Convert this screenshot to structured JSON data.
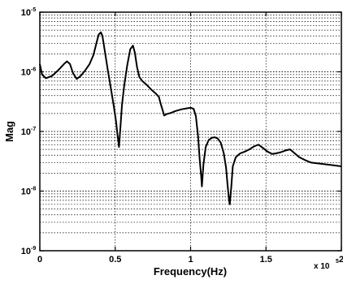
{
  "chart_data": {
    "type": "line",
    "xlabel": "Frequency(Hz)",
    "ylabel": "Mag",
    "x_scale_label": "x 10",
    "x_scale_exp": "5",
    "xlim": [
      0,
      2
    ],
    "ylim": [
      1e-09,
      1e-05
    ],
    "yscale": "log",
    "grid": "dotted",
    "x_ticks": [
      {
        "value": 0,
        "label": "0"
      },
      {
        "value": 0.5,
        "label": "0.5"
      },
      {
        "value": 1,
        "label": "1"
      },
      {
        "value": 1.5,
        "label": "1.5"
      },
      {
        "value": 2,
        "label": "2"
      }
    ],
    "y_ticks": [
      {
        "value": 1e-09,
        "base": "10",
        "exp": "-9"
      },
      {
        "value": 1e-08,
        "base": "10",
        "exp": "-8"
      },
      {
        "value": 1e-07,
        "base": "10",
        "exp": "-7"
      },
      {
        "value": 1e-06,
        "base": "10",
        "exp": "-6"
      },
      {
        "value": 1e-05,
        "base": "10",
        "exp": "-5"
      }
    ],
    "series": [
      {
        "color": "#000000",
        "points": [
          [
            0.0,
            1.35e-06
          ],
          [
            0.015,
            9e-07
          ],
          [
            0.04,
            7.8e-07
          ],
          [
            0.08,
            8.5e-07
          ],
          [
            0.12,
            1.05e-06
          ],
          [
            0.16,
            1.35e-06
          ],
          [
            0.18,
            1.5e-06
          ],
          [
            0.2,
            1.35e-06
          ],
          [
            0.22,
            9.5e-07
          ],
          [
            0.245,
            7.6e-07
          ],
          [
            0.27,
            8.5e-07
          ],
          [
            0.3,
            1.05e-06
          ],
          [
            0.33,
            1.35e-06
          ],
          [
            0.355,
            1.9e-06
          ],
          [
            0.375,
            3e-06
          ],
          [
            0.39,
            4.2e-06
          ],
          [
            0.405,
            4.6e-06
          ],
          [
            0.415,
            4e-06
          ],
          [
            0.43,
            2.3e-06
          ],
          [
            0.45,
            1.1e-06
          ],
          [
            0.47,
            5.5e-07
          ],
          [
            0.49,
            2.7e-07
          ],
          [
            0.505,
            1.5e-07
          ],
          [
            0.515,
            9e-08
          ],
          [
            0.525,
            5.5e-08
          ],
          [
            0.535,
            1.2e-07
          ],
          [
            0.545,
            2.8e-07
          ],
          [
            0.56,
            6e-07
          ],
          [
            0.58,
            1.3e-06
          ],
          [
            0.6,
            2.4e-06
          ],
          [
            0.618,
            2.75e-06
          ],
          [
            0.63,
            2.1e-06
          ],
          [
            0.645,
            1.2e-06
          ],
          [
            0.66,
            8.2e-07
          ],
          [
            0.68,
            7e-07
          ],
          [
            0.71,
            6e-07
          ],
          [
            0.74,
            5e-07
          ],
          [
            0.77,
            4.3e-07
          ],
          [
            0.79,
            3.8e-07
          ],
          [
            0.8,
            3e-07
          ],
          [
            0.815,
            2.25e-07
          ],
          [
            0.825,
            1.85e-07
          ],
          [
            0.84,
            1.95e-07
          ],
          [
            0.87,
            2.05e-07
          ],
          [
            0.9,
            2.2e-07
          ],
          [
            0.94,
            2.35e-07
          ],
          [
            0.98,
            2.45e-07
          ],
          [
            1.0,
            2.5e-07
          ],
          [
            1.02,
            2.4e-07
          ],
          [
            1.035,
            1.8e-07
          ],
          [
            1.05,
            8e-08
          ],
          [
            1.06,
            3.5e-08
          ],
          [
            1.07,
            1.8e-08
          ],
          [
            1.075,
            1.2e-08
          ],
          [
            1.085,
            2.8e-08
          ],
          [
            1.1,
            5.5e-08
          ],
          [
            1.12,
            7.2e-08
          ],
          [
            1.14,
            7.8e-08
          ],
          [
            1.16,
            8e-08
          ],
          [
            1.18,
            7.6e-08
          ],
          [
            1.2,
            6.5e-08
          ],
          [
            1.22,
            4.3e-08
          ],
          [
            1.235,
            2.5e-08
          ],
          [
            1.245,
            1.3e-08
          ],
          [
            1.255,
            7e-09
          ],
          [
            1.26,
            6e-09
          ],
          [
            1.27,
            1.2e-08
          ],
          [
            1.28,
            2.6e-08
          ],
          [
            1.3,
            3.7e-08
          ],
          [
            1.33,
            4.3e-08
          ],
          [
            1.36,
            4.6e-08
          ],
          [
            1.39,
            5e-08
          ],
          [
            1.42,
            5.6e-08
          ],
          [
            1.45,
            6e-08
          ],
          [
            1.48,
            5.3e-08
          ],
          [
            1.51,
            4.6e-08
          ],
          [
            1.54,
            4.2e-08
          ],
          [
            1.57,
            4.3e-08
          ],
          [
            1.6,
            4.5e-08
          ],
          [
            1.63,
            4.8e-08
          ],
          [
            1.66,
            5e-08
          ],
          [
            1.69,
            4.3e-08
          ],
          [
            1.72,
            3.7e-08
          ],
          [
            1.76,
            3.3e-08
          ],
          [
            1.8,
            3e-08
          ],
          [
            1.85,
            2.9e-08
          ],
          [
            1.9,
            2.8e-08
          ],
          [
            1.95,
            2.7e-08
          ],
          [
            2.0,
            2.6e-08
          ]
        ]
      }
    ]
  }
}
